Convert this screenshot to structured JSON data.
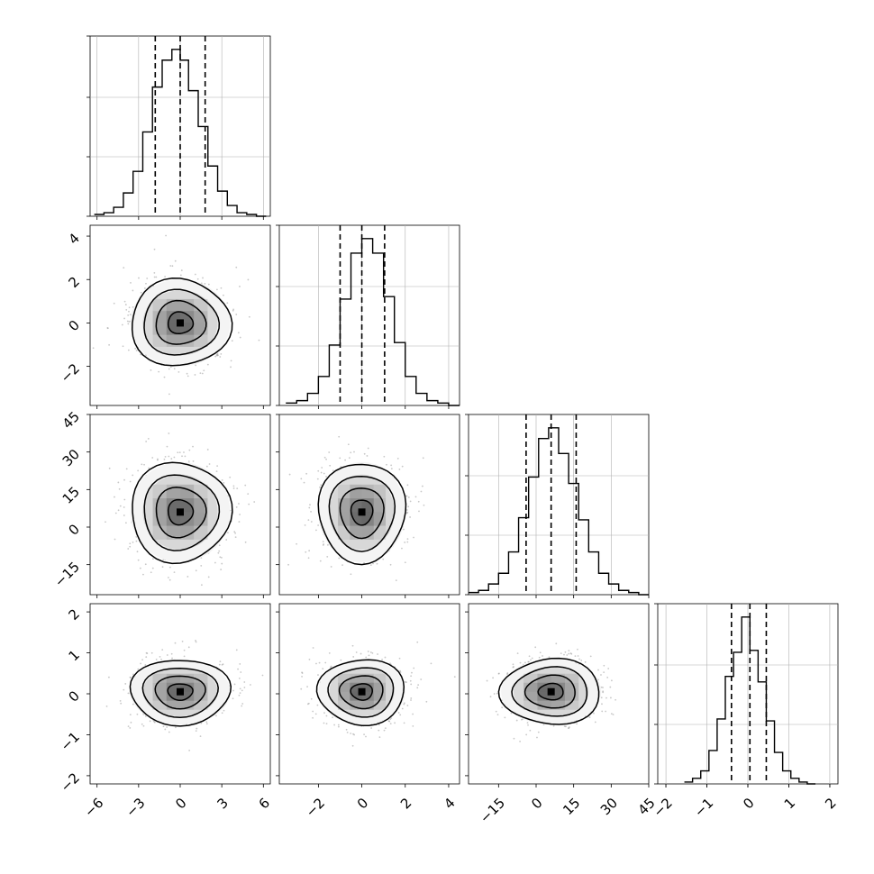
{
  "chart_data": {
    "type": "corner",
    "title": "",
    "parameters": [
      {
        "range": [
          -6.5,
          6.5
        ],
        "ticks": [
          -6,
          -3,
          0,
          3,
          6
        ],
        "tick_labels": [
          "−6",
          "−3",
          "0",
          "3",
          "6"
        ],
        "quantiles": [
          -1.8,
          0.0,
          1.8
        ]
      },
      {
        "range": [
          -3.8,
          4.5
        ],
        "ticks": [
          -2,
          0,
          2,
          4
        ],
        "tick_labels": [
          "−2",
          "0",
          "2",
          "4"
        ],
        "quantiles": [
          -1.0,
          0.0,
          1.05
        ]
      },
      {
        "range": [
          -27,
          45
        ],
        "ticks": [
          -15,
          0,
          15,
          30,
          45
        ],
        "tick_labels": [
          "−15",
          "0",
          "15",
          "30",
          "45"
        ],
        "quantiles": [
          -4,
          6,
          16
        ]
      },
      {
        "range": [
          -2.2,
          2.2
        ],
        "ticks": [
          -2,
          -1,
          0,
          1,
          2
        ],
        "tick_labels": [
          "−2",
          "−1",
          "0",
          "1",
          "2"
        ],
        "quantiles": [
          -0.4,
          0.05,
          0.45
        ]
      }
    ],
    "diagonal_histograms": [
      {
        "bin_edges": [
          -6.2,
          -5.5,
          -4.8,
          -4.1,
          -3.4,
          -2.7,
          -2.0,
          -1.3,
          -0.6,
          0.0,
          0.6,
          1.3,
          2.0,
          2.7,
          3.4,
          4.1,
          4.8,
          5.5,
          6.2
        ],
        "counts": [
          1,
          2,
          5,
          13,
          25,
          47,
          72,
          87,
          93,
          87,
          70,
          50,
          28,
          14,
          6,
          2,
          1,
          0
        ]
      },
      {
        "bin_edges": [
          -3.5,
          -3.0,
          -2.5,
          -2.0,
          -1.5,
          -1.0,
          -0.5,
          0.0,
          0.5,
          1.0,
          1.5,
          2.0,
          2.5,
          3.0,
          3.5,
          4.0,
          4.5
        ],
        "counts": [
          1,
          2,
          5,
          12,
          25,
          44,
          63,
          69,
          63,
          45,
          26,
          12,
          5,
          2,
          1,
          0
        ]
      },
      {
        "bin_edges": [
          -27,
          -23,
          -19,
          -15,
          -11,
          -7,
          -3,
          1,
          5,
          9,
          13,
          17,
          21,
          25,
          29,
          33,
          37,
          41,
          45
        ],
        "counts": [
          1,
          2,
          5,
          10,
          20,
          36,
          55,
          73,
          78,
          66,
          52,
          35,
          20,
          10,
          5,
          2,
          1,
          0
        ]
      },
      {
        "bin_edges": [
          -1.55,
          -1.35,
          -1.15,
          -0.95,
          -0.75,
          -0.55,
          -0.35,
          -0.15,
          0.05,
          0.25,
          0.45,
          0.65,
          0.85,
          1.05,
          1.25,
          1.45,
          1.65
        ],
        "counts": [
          1,
          3,
          7,
          18,
          35,
          58,
          71,
          90,
          72,
          55,
          34,
          17,
          7,
          3,
          1,
          0
        ]
      }
    ],
    "off_diagonal": {
      "marginal_sigma": [
        1.8,
        1.0,
        10.0,
        0.4
      ],
      "center": [
        0.0,
        0.0,
        6.0,
        0.05
      ],
      "contour_levels_sigma": [
        0.5,
        1.0,
        1.5,
        2.0
      ],
      "scatter": "light gray points outside outermost contour"
    },
    "grid": true,
    "colors": {
      "line": "#000000",
      "grid": "#b0b0b0",
      "scatter": "#9a9a9a"
    }
  }
}
